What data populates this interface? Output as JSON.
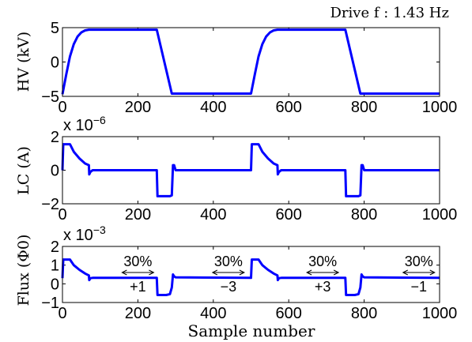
{
  "annotation": {
    "drive": "Drive f : 1.43 Hz"
  },
  "chart_data": [
    {
      "type": "line",
      "ylabel": "HV (kV)",
      "xlim": [
        0,
        1000
      ],
      "ylim": [
        -5,
        5
      ],
      "xticks": [
        0,
        200,
        400,
        600,
        800,
        1000
      ],
      "yticks": [
        -5,
        0,
        5
      ],
      "color": "#0000ff",
      "series": [
        {
          "x": [
            0,
            10,
            20,
            30,
            40,
            50,
            60,
            70,
            250,
            290,
            500,
            510,
            520,
            530,
            540,
            550,
            560,
            570,
            750,
            790,
            1000
          ],
          "y": [
            -4.7,
            -1.8,
            0.8,
            2.6,
            3.7,
            4.3,
            4.6,
            4.7,
            4.7,
            -4.6,
            -4.6,
            -1.8,
            0.8,
            2.6,
            3.7,
            4.3,
            4.6,
            4.7,
            4.7,
            -4.6,
            -4.6
          ]
        }
      ]
    },
    {
      "type": "line",
      "ylabel": "LC (A)",
      "exponent": "x 10",
      "exponent_power": "−6",
      "xlim": [
        0,
        1000
      ],
      "ylim": [
        -2,
        2
      ],
      "xticks": [
        0,
        200,
        400,
        600,
        800,
        1000
      ],
      "yticks": [
        -2,
        0,
        2
      ],
      "color": "#0000ff",
      "series": [
        {
          "x": [
            0,
            2,
            20,
            30,
            45,
            60,
            70,
            71,
            74,
            80,
            250,
            252,
            285,
            290,
            293,
            296,
            300,
            500,
            502,
            520,
            530,
            545,
            560,
            570,
            571,
            574,
            580,
            750,
            752,
            785,
            790,
            793,
            796,
            800,
            1000
          ],
          "y": [
            0,
            1.55,
            1.55,
            1.1,
            0.7,
            0.4,
            0.3,
            -0.25,
            -0.1,
            0,
            0,
            -1.55,
            -1.55,
            -1.5,
            0.3,
            0.3,
            0,
            0,
            1.55,
            1.55,
            1.1,
            0.7,
            0.4,
            0.3,
            -0.25,
            -0.1,
            0,
            0,
            -1.55,
            -1.55,
            -1.5,
            0.3,
            0.3,
            0,
            0
          ]
        }
      ]
    },
    {
      "type": "line",
      "ylabel": "Flux (Φ0)",
      "xlabel": "Sample number",
      "exponent": "x 10",
      "exponent_power": "−3",
      "xlim": [
        0,
        1000
      ],
      "ylim": [
        -1,
        2
      ],
      "xticks": [
        0,
        200,
        400,
        600,
        800,
        1000
      ],
      "yticks": [
        -1,
        0,
        1,
        2
      ],
      "color": "#0000ff",
      "series": [
        {
          "x": [
            0,
            2,
            20,
            30,
            45,
            60,
            70,
            71,
            74,
            80,
            250,
            252,
            275,
            285,
            290,
            293,
            296,
            300,
            500,
            502,
            520,
            530,
            545,
            560,
            570,
            571,
            574,
            580,
            750,
            752,
            775,
            785,
            790,
            793,
            796,
            800,
            1000
          ],
          "y": [
            0.3,
            1.3,
            1.3,
            1.0,
            0.75,
            0.55,
            0.45,
            0.2,
            0.3,
            0.32,
            0.32,
            -0.6,
            -0.6,
            -0.55,
            -0.2,
            0.5,
            0.4,
            0.35,
            0.32,
            1.3,
            1.3,
            1.0,
            0.75,
            0.55,
            0.45,
            0.2,
            0.3,
            0.32,
            0.32,
            -0.6,
            -0.6,
            -0.55,
            -0.2,
            0.5,
            0.4,
            0.35,
            0.32
          ]
        }
      ],
      "annotations": [
        {
          "top": "30%",
          "bottom": "+1",
          "x_center": 200
        },
        {
          "top": "30%",
          "bottom": "−3",
          "x_center": 440
        },
        {
          "top": "30%",
          "bottom": "+3",
          "x_center": 690
        },
        {
          "top": "30%",
          "bottom": "−1",
          "x_center": 945
        }
      ]
    }
  ]
}
